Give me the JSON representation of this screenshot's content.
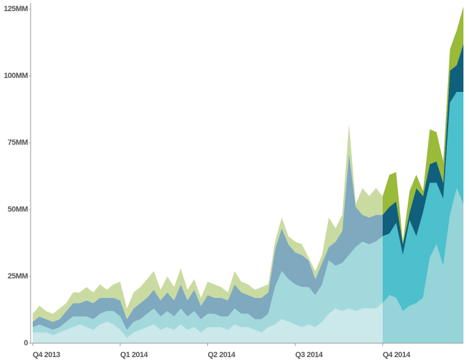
{
  "chart_data": {
    "type": "stacked_area",
    "categories": [
      "Q4 2013",
      null,
      null,
      null,
      null,
      null,
      null,
      null,
      null,
      null,
      null,
      null,
      null,
      "Q1 2014",
      null,
      null,
      null,
      null,
      null,
      null,
      null,
      null,
      null,
      null,
      null,
      null,
      "Q2 2014",
      null,
      null,
      null,
      null,
      null,
      null,
      null,
      null,
      null,
      null,
      null,
      null,
      "Q3 2014",
      null,
      null,
      null,
      null,
      null,
      null,
      null,
      null,
      null,
      null,
      null,
      null,
      "Q4 2014",
      null,
      null,
      null,
      null,
      null,
      null,
      null,
      null,
      null,
      null,
      null,
      null
    ],
    "highlight_from": "Q4 2014",
    "series": [
      {
        "color": "#cbe8ea",
        "highlight_color": "#95d4d8",
        "values": [
          4,
          4,
          4,
          3,
          4,
          5,
          6,
          7,
          6,
          5,
          7,
          8,
          7,
          5,
          2,
          4,
          5,
          6,
          7,
          5,
          6,
          5,
          7,
          5,
          6,
          4,
          6,
          6,
          6,
          5,
          7,
          6,
          6,
          5,
          4,
          6,
          7,
          9,
          8,
          7,
          6,
          7,
          6,
          8,
          11,
          13,
          12,
          13,
          12,
          13,
          13,
          13,
          15,
          18,
          17,
          12,
          14,
          15,
          17,
          32,
          37,
          29,
          48,
          58,
          52
        ]
      },
      {
        "color": "#a3d9dd",
        "highlight_color": "#4cc0cc",
        "values": [
          2,
          3,
          2,
          2,
          2,
          3,
          4,
          3,
          4,
          4,
          4,
          4,
          5,
          5,
          3,
          4,
          4,
          5,
          6,
          5,
          6,
          5,
          6,
          5,
          6,
          5,
          5,
          5,
          4,
          5,
          6,
          5,
          5,
          4,
          5,
          5,
          14,
          18,
          16,
          15,
          15,
          14,
          12,
          14,
          20,
          16,
          18,
          20,
          24,
          25,
          24,
          25,
          25,
          23,
          28,
          21,
          32,
          25,
          32,
          28,
          23,
          25,
          42,
          36,
          42
        ]
      },
      {
        "color": "#7fa9bf",
        "highlight_color": "#0f5f7d",
        "values": [
          2,
          3,
          3,
          3,
          3,
          4,
          5,
          5,
          6,
          6,
          6,
          5,
          5,
          6,
          4,
          5,
          6,
          6,
          7,
          6,
          7,
          6,
          9,
          6,
          8,
          5,
          7,
          6,
          7,
          6,
          9,
          8,
          7,
          8,
          8,
          8,
          14,
          16,
          13,
          12,
          12,
          10,
          6,
          8,
          5,
          9,
          12,
          38,
          15,
          10,
          10,
          10,
          8,
          10,
          8,
          4,
          3,
          18,
          6,
          7,
          8,
          6,
          12,
          10,
          18
        ]
      },
      {
        "color": "#c9dba0",
        "highlight_color": "#9aba3a",
        "values": [
          3,
          4,
          3,
          3,
          4,
          3,
          4,
          4,
          5,
          4,
          5,
          3,
          5,
          7,
          4,
          6,
          6,
          7,
          7,
          4,
          6,
          5,
          6,
          4,
          4,
          3,
          5,
          5,
          4,
          3,
          5,
          4,
          4,
          3,
          4,
          3,
          3,
          4,
          3,
          4,
          4,
          1,
          3,
          3,
          11,
          5,
          6,
          11,
          1,
          10,
          8,
          10,
          7,
          12,
          11,
          1,
          8,
          5,
          2,
          13,
          11,
          8,
          8,
          13,
          14
        ]
      }
    ],
    "ylim": [
      0,
      125
    ],
    "yticks": [
      0,
      {
        "value": 25,
        "label": "25MM"
      },
      {
        "value": 50,
        "label": "50MM"
      },
      {
        "value": 75,
        "label": "75MM"
      },
      {
        "value": 100,
        "label": "100MM"
      },
      {
        "value": 125,
        "label": "125MM"
      }
    ]
  }
}
